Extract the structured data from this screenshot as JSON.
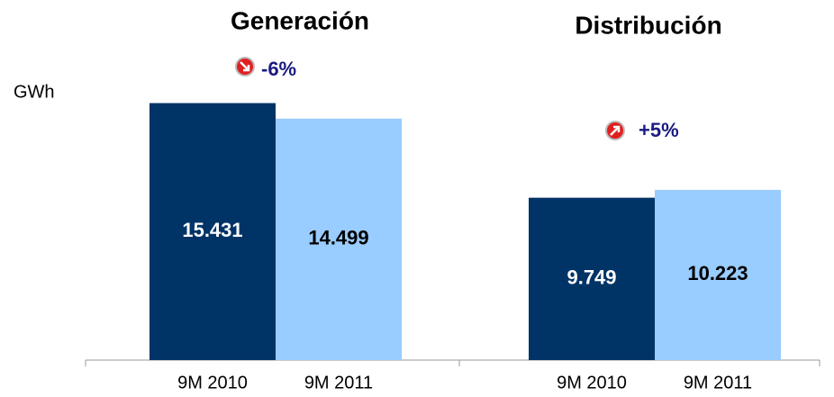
{
  "chart_data": [
    {
      "type": "bar",
      "title": "Generación",
      "ylabel": "GWh",
      "annotation": "-6%",
      "categories": [
        "9M 2010",
        "9M 2011"
      ],
      "values": [
        15431,
        14499
      ],
      "value_labels": [
        "15.431",
        "14.499"
      ],
      "colors": [
        "#003366",
        "#99ccff"
      ],
      "ylim": [
        0,
        20000
      ]
    },
    {
      "type": "bar",
      "title": "Distribución",
      "annotation": "+5%",
      "categories": [
        "9M 2010",
        "9M 2011"
      ],
      "values": [
        9749,
        10223
      ],
      "value_labels": [
        "9.749",
        "10.223"
      ],
      "colors": [
        "#003366",
        "#99ccff"
      ],
      "ylim": [
        0,
        20000
      ]
    }
  ]
}
